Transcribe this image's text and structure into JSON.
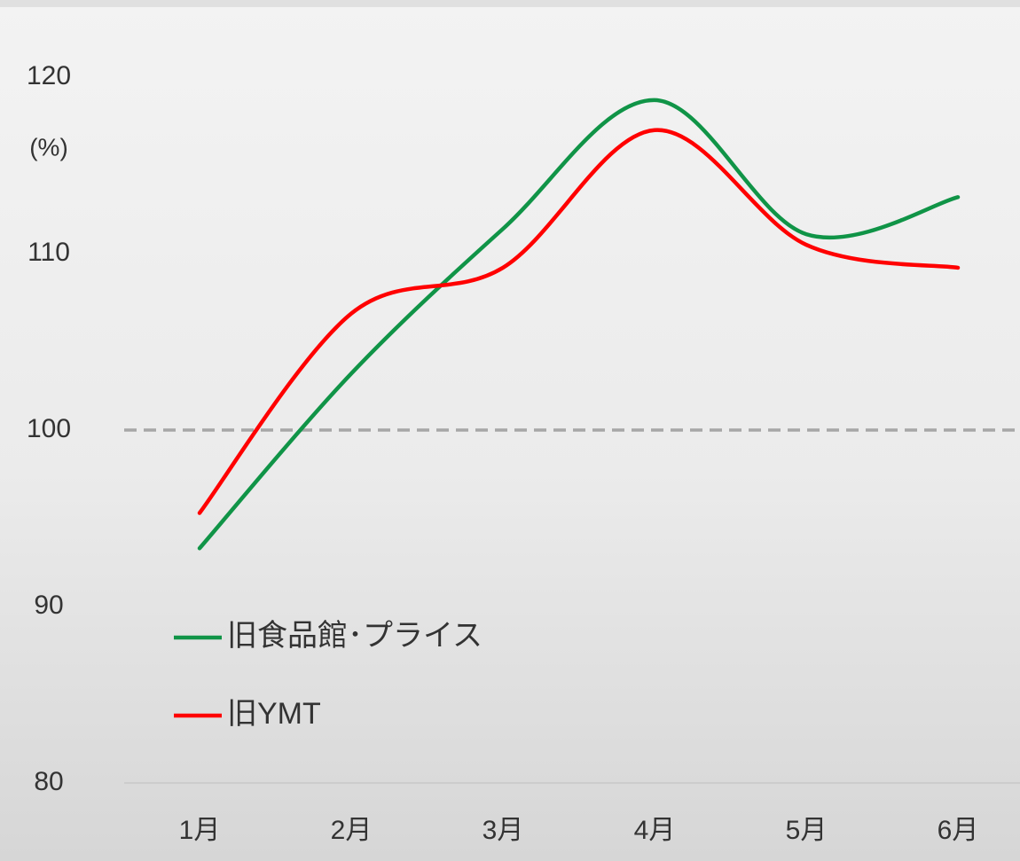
{
  "chart_data": {
    "type": "line",
    "y_unit_label": "(%)",
    "categories": [
      "1月",
      "2月",
      "3月",
      "4月",
      "5月",
      "6月"
    ],
    "series": [
      {
        "name": "旧食品館･プライス",
        "color": "#109447",
        "values": [
          93.3,
          103.2,
          111.4,
          118.7,
          111.1,
          113.2
        ]
      },
      {
        "name": "旧YMT",
        "color": "#ff0000",
        "values": [
          95.3,
          106.6,
          109.2,
          117.0,
          110.5,
          109.2
        ]
      }
    ],
    "ylim": [
      80,
      120
    ],
    "yticks": [
      80,
      90,
      100,
      110,
      120
    ],
    "reference_line": 100,
    "legend": "lower-left",
    "smooth": true
  }
}
